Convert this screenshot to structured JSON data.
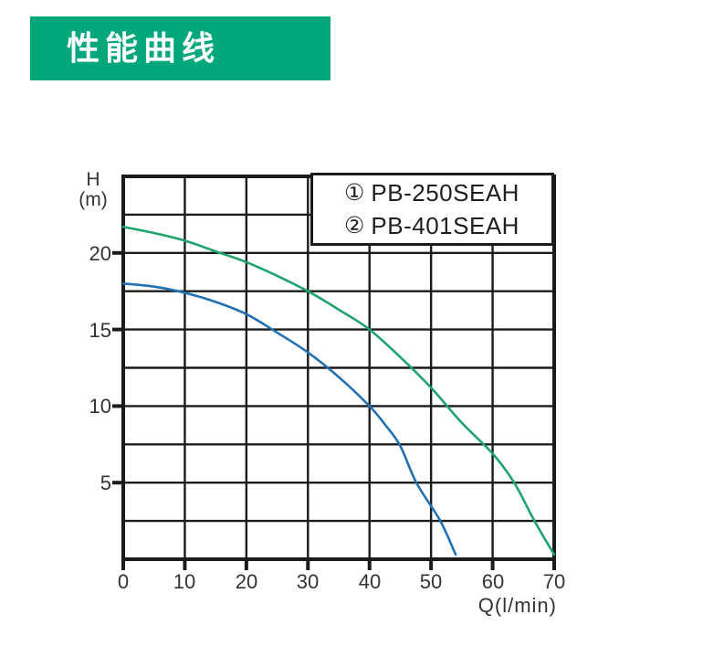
{
  "page": {
    "background": "#ffffff"
  },
  "header": {
    "title": "性能曲线",
    "bg_color": "#04a77b",
    "text_color": "#ffffff"
  },
  "chart_data": {
    "type": "line",
    "xlabel": "Q(l/min)",
    "ylabel_line1": "H",
    "ylabel_line2": "(m)",
    "xlim": [
      0,
      70
    ],
    "ylim": [
      0,
      25
    ],
    "x_grid_step": 10,
    "y_grid_step": 2.5,
    "grid": true,
    "axis_color": "#1b1b1b",
    "x_tick_labels": [
      "0",
      "10",
      "20",
      "30",
      "40",
      "50",
      "60",
      "70"
    ],
    "y_tick_labels": [
      "20",
      "15",
      "10",
      "5"
    ],
    "y_tick_values": [
      20,
      15,
      10,
      5
    ],
    "x_tick_values": [
      0,
      10,
      20,
      30,
      40,
      50,
      60,
      70
    ],
    "legend_position": "top-right",
    "legend": [
      {
        "marker": "①",
        "label": "PB-250SEAH"
      },
      {
        "marker": "②",
        "label": "PB-401SEAH"
      }
    ],
    "series": [
      {
        "name": "① PB-250SEAH",
        "color": "#2271b3",
        "points": [
          [
            0,
            18.0
          ],
          [
            5,
            17.8
          ],
          [
            10,
            17.4
          ],
          [
            15,
            16.8
          ],
          [
            20,
            16.0
          ],
          [
            25,
            14.8
          ],
          [
            30,
            13.5
          ],
          [
            35,
            11.9
          ],
          [
            40,
            10.0
          ],
          [
            42.5,
            8.8
          ],
          [
            45,
            7.4
          ],
          [
            47.6,
            5.0
          ],
          [
            51.5,
            2.5
          ],
          [
            54,
            0.3
          ]
        ]
      },
      {
        "name": "② PB-401SEAH",
        "color": "#1fa36d",
        "points": [
          [
            0,
            21.7
          ],
          [
            5,
            21.3
          ],
          [
            10,
            20.8
          ],
          [
            15,
            20.1
          ],
          [
            20,
            19.4
          ],
          [
            25,
            18.5
          ],
          [
            30,
            17.5
          ],
          [
            35,
            16.3
          ],
          [
            40,
            15.0
          ],
          [
            45,
            13.2
          ],
          [
            50,
            11.2
          ],
          [
            55,
            8.9
          ],
          [
            60,
            6.9
          ],
          [
            63.5,
            5.0
          ],
          [
            66.8,
            2.5
          ],
          [
            70,
            0.3
          ]
        ]
      }
    ]
  }
}
